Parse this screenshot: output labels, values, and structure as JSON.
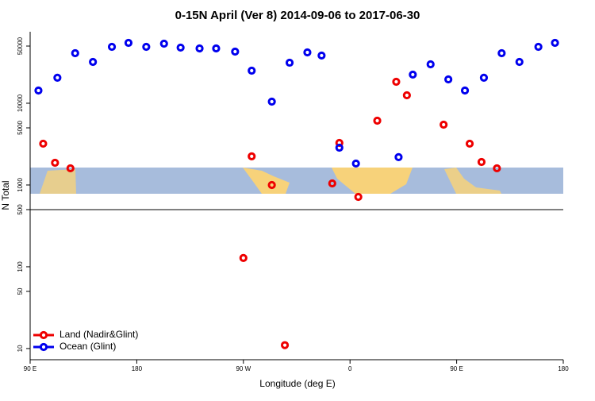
{
  "chart_data": {
    "type": "scatter",
    "title": "0-15N April (Ver 8)   2014-09-06 to 2017-06-30",
    "x_label": "Longitude (deg E)",
    "y_label": "N Total",
    "log_y": true,
    "legend": "bottom-left",
    "xlim": [
      90,
      540
    ],
    "xticks": [
      {
        "value": 90,
        "label": "90 E"
      },
      180,
      {
        "value": 270,
        "label": "90 W"
      },
      {
        "value": 360,
        "label": "0"
      },
      {
        "value": 450,
        "label": "90 E"
      },
      {
        "value": 540,
        "label": "180"
      }
    ],
    "ylim": [
      7.3,
      74800
    ],
    "yticks": [
      10,
      50,
      100,
      500,
      1000,
      5000,
      10000,
      50000
    ],
    "series": [
      {
        "name": "Land (Nadir&Glint)",
        "color": "#ee0000",
        "x": [
          101,
          111,
          124,
          270,
          277,
          294,
          305,
          345,
          351,
          367,
          383,
          399,
          408,
          439,
          461,
          471,
          484
        ],
        "values": [
          3200,
          1870,
          1600,
          128,
          2240,
          1000,
          11,
          1045,
          3270,
          715,
          6110,
          18300,
          12500,
          5470,
          3200,
          1910,
          1600
        ]
      },
      {
        "name": "Ocean (Glint)",
        "color": "#0000ee",
        "x": [
          97,
          113,
          128,
          143,
          159,
          173,
          188,
          203,
          217,
          233,
          247,
          263,
          277,
          294,
          309,
          324,
          336,
          351,
          365,
          401,
          413,
          428,
          443,
          457,
          473,
          488,
          503,
          519,
          533
        ],
        "values": [
          14300,
          20500,
          40900,
          32000,
          48900,
          54700,
          48900,
          53500,
          47900,
          46800,
          46800,
          42800,
          25000,
          10450,
          31300,
          41800,
          38300,
          2860,
          1830,
          2190,
          22400,
          29900,
          19550,
          14300,
          20500,
          40900,
          32000,
          48900,
          54700
        ]
      }
    ]
  }
}
